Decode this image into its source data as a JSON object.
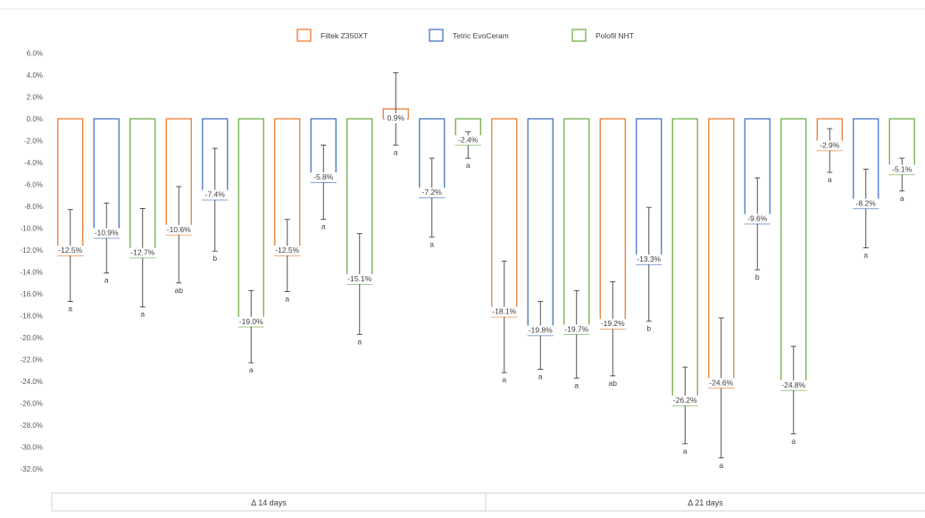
{
  "chart_data": {
    "type": "bar",
    "categories": [
      "Δ 14 days",
      "Δ 21 days"
    ],
    "ylim": [
      -32,
      6
    ],
    "ytick_step": 2,
    "legend_position": "top-center",
    "grid": false,
    "y_ticks": [
      "6.0%",
      "4.0%",
      "2.0%",
      "0.0%",
      "-2.0%",
      "-4.0%",
      "-6.0%",
      "-8.0%",
      "-10.0%",
      "-12.0%",
      "-14.0%",
      "-16.0%",
      "-18.0%",
      "-20.0%",
      "-22.0%",
      "-24.0%",
      "-26.0%",
      "-28.0%",
      "-30.0%",
      "-32.0%"
    ],
    "series": [
      {
        "name": "Filtek Z350XT",
        "color": "#ED7D31"
      },
      {
        "name": "Tetric EvoCeram",
        "color": "#4472C4"
      },
      {
        "name": "Polofil NHT",
        "color": "#70AD47"
      }
    ],
    "bars": [
      {
        "group": 0,
        "series": 0,
        "value": -12.5,
        "err": 4.2,
        "label": "-12.5%",
        "sig": "a"
      },
      {
        "group": 0,
        "series": 1,
        "value": -10.9,
        "err": 3.2,
        "label": "-10.9%",
        "sig": "a"
      },
      {
        "group": 0,
        "series": 2,
        "value": -12.7,
        "err": 4.5,
        "label": "-12.7%",
        "sig": "a"
      },
      {
        "group": 0,
        "series": 0,
        "value": -10.6,
        "err": 4.4,
        "label": "-10.6%",
        "sig": "ab"
      },
      {
        "group": 0,
        "series": 1,
        "value": -7.4,
        "err": 4.7,
        "label": "-7.4%",
        "sig": "b"
      },
      {
        "group": 0,
        "series": 2,
        "value": -19.0,
        "err": 3.3,
        "label": "-19.0%",
        "sig": "a"
      },
      {
        "group": 0,
        "series": 0,
        "value": -12.5,
        "err": 3.3,
        "label": "-12.5%",
        "sig": "a"
      },
      {
        "group": 0,
        "series": 1,
        "value": -5.8,
        "err": 3.4,
        "label": "-5.8%",
        "sig": "a"
      },
      {
        "group": 0,
        "series": 2,
        "value": -15.1,
        "err": 4.6,
        "label": "-15.1%",
        "sig": "a"
      },
      {
        "group": 0,
        "series": 0,
        "value": 0.9,
        "err": 3.3,
        "label": "0.9%",
        "sig": "a"
      },
      {
        "group": 0,
        "series": 1,
        "value": -7.2,
        "err": 3.6,
        "label": "-7.2%",
        "sig": "a"
      },
      {
        "group": 0,
        "series": 2,
        "value": -2.4,
        "err": 1.2,
        "label": "-2.4%",
        "sig": "a"
      },
      {
        "group": 1,
        "series": 0,
        "value": -18.1,
        "err": 5.1,
        "label": "-18.1%",
        "sig": "a"
      },
      {
        "group": 1,
        "series": 1,
        "value": -19.8,
        "err": 3.1,
        "label": "-19.8%",
        "sig": "a"
      },
      {
        "group": 1,
        "series": 2,
        "value": -19.7,
        "err": 4.0,
        "label": "-19.7%",
        "sig": "a"
      },
      {
        "group": 1,
        "series": 0,
        "value": -19.2,
        "err": 4.3,
        "label": "-19.2%",
        "sig": "ab"
      },
      {
        "group": 1,
        "series": 1,
        "value": -13.3,
        "err": 5.2,
        "label": "-13.3%",
        "sig": "b"
      },
      {
        "group": 1,
        "series": 2,
        "value": -26.2,
        "err": 3.5,
        "label": "-26.2%",
        "sig": "a"
      },
      {
        "group": 1,
        "series": 0,
        "value": -24.6,
        "err": 6.4,
        "label": "-24.6%",
        "sig": "a"
      },
      {
        "group": 1,
        "series": 1,
        "value": -9.6,
        "err": 4.2,
        "label": "-9.6%",
        "sig": "b"
      },
      {
        "group": 1,
        "series": 2,
        "value": -24.8,
        "err": 4.0,
        "label": "-24.8%",
        "sig": "a"
      },
      {
        "group": 1,
        "series": 0,
        "value": -2.9,
        "err": 2.0,
        "label": "-2.9%",
        "sig": "a"
      },
      {
        "group": 1,
        "series": 1,
        "value": -8.2,
        "err": 3.6,
        "label": "-8.2%",
        "sig": "a"
      },
      {
        "group": 1,
        "series": 2,
        "value": -5.1,
        "err": 1.5,
        "label": "-5.1%",
        "sig": "a"
      }
    ]
  }
}
